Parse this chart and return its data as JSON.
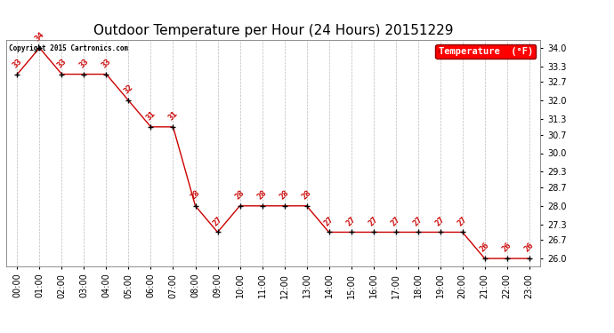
{
  "title": "Outdoor Temperature per Hour (24 Hours) 20151229",
  "hours": [
    "00:00",
    "01:00",
    "02:00",
    "03:00",
    "04:00",
    "05:00",
    "06:00",
    "07:00",
    "08:00",
    "09:00",
    "10:00",
    "11:00",
    "12:00",
    "13:00",
    "14:00",
    "15:00",
    "16:00",
    "17:00",
    "18:00",
    "19:00",
    "20:00",
    "21:00",
    "22:00",
    "23:00"
  ],
  "temps": [
    33,
    34,
    33,
    33,
    33,
    32,
    31,
    31,
    28,
    27,
    28,
    28,
    28,
    28,
    27,
    27,
    27,
    27,
    27,
    27,
    27,
    26,
    26,
    26
  ],
  "ylim": [
    25.7,
    34.3
  ],
  "yticks": [
    26.0,
    26.7,
    27.3,
    28.0,
    28.7,
    29.3,
    30.0,
    30.7,
    31.3,
    32.0,
    32.7,
    33.3,
    34.0
  ],
  "line_color": "#cc0000",
  "marker_color": "#000000",
  "label_color": "#cc0000",
  "bg_color": "#ffffff",
  "grid_color": "#bbbbbb",
  "legend_label": "Temperature  (°F)",
  "copyright_text": "Copyright 2015 Cartronics.com",
  "title_fontsize": 11,
  "tick_fontsize": 7,
  "annot_fontsize": 6.5
}
